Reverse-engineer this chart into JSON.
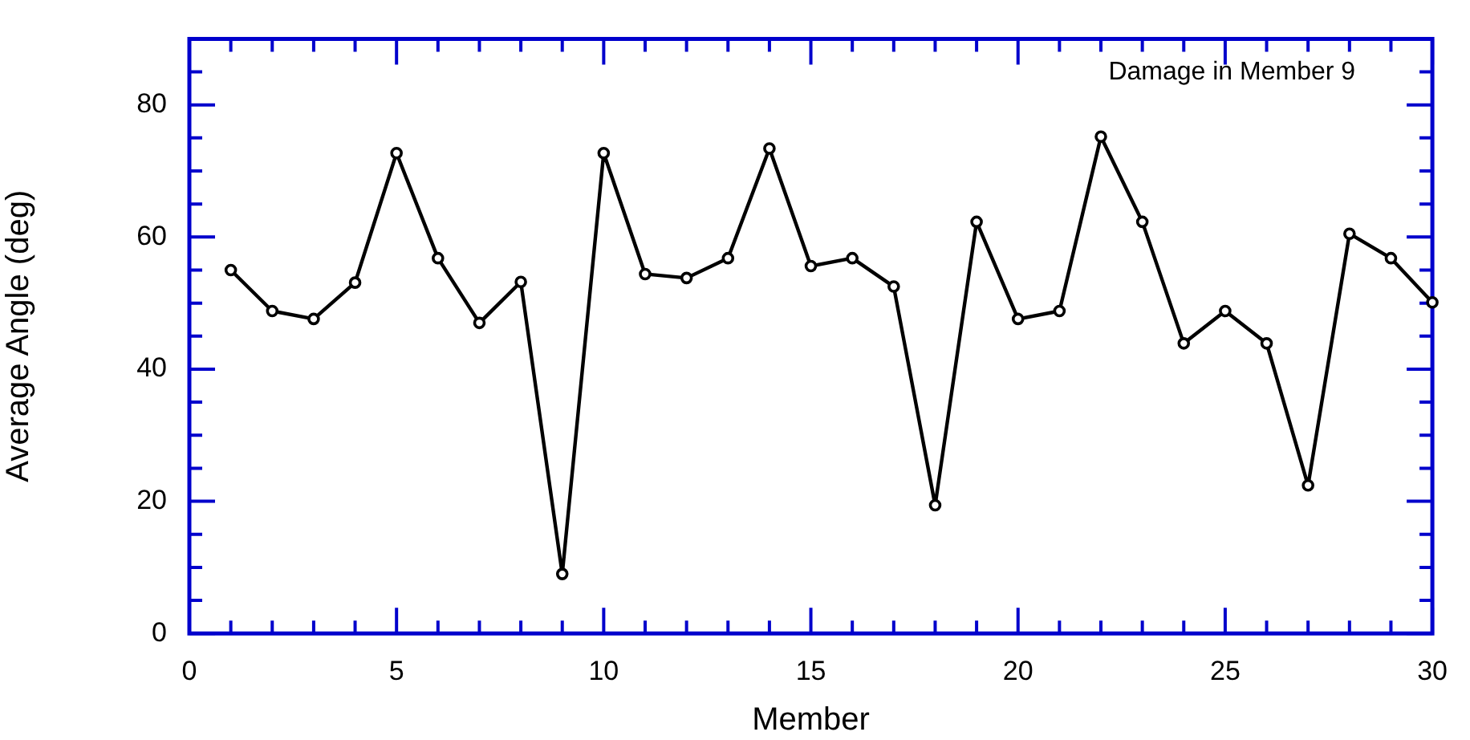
{
  "chart_data": {
    "type": "line",
    "xlabel": "Member",
    "ylabel": "Average Angle (deg)",
    "annotations": [
      "Damage in Member 9"
    ],
    "x": [
      1,
      2,
      3,
      4,
      5,
      6,
      7,
      8,
      9,
      10,
      11,
      12,
      13,
      14,
      15,
      16,
      17,
      18,
      19,
      20,
      21,
      22,
      23,
      24,
      25,
      26,
      27,
      28,
      29,
      30
    ],
    "series": [
      {
        "color": "#000000",
        "values": [
          55,
          48.8,
          47.6,
          53.1,
          72.7,
          56.8,
          47,
          53.2,
          9,
          72.7,
          54.4,
          53.8,
          56.8,
          73.4,
          55.6,
          56.8,
          52.5,
          19.4,
          62.3,
          47.6,
          48.8,
          75.2,
          62.3,
          43.9,
          48.8,
          43.9,
          22.4,
          60.5,
          56.8,
          50.1
        ]
      }
    ],
    "xlim": [
      0,
      30
    ],
    "ylim": [
      0,
      90
    ],
    "xticks": [
      0,
      {
        "value": 1,
        "label": null
      },
      {
        "value": 2,
        "label": null
      },
      {
        "value": 3,
        "label": null
      },
      {
        "value": 4,
        "label": null
      },
      5,
      {
        "value": 6,
        "label": null
      },
      {
        "value": 7,
        "label": null
      },
      {
        "value": 8,
        "label": null
      },
      {
        "value": 9,
        "label": null
      },
      10,
      {
        "value": 11,
        "label": null
      },
      {
        "value": 12,
        "label": null
      },
      {
        "value": 13,
        "label": null
      },
      {
        "value": 14,
        "label": null
      },
      15,
      {
        "value": 16,
        "label": null
      },
      {
        "value": 17,
        "label": null
      },
      {
        "value": 18,
        "label": null
      },
      {
        "value": 19,
        "label": null
      },
      20,
      {
        "value": 21,
        "label": null
      },
      {
        "value": 22,
        "label": null
      },
      {
        "value": 23,
        "label": null
      },
      {
        "value": 24,
        "label": null
      },
      25,
      {
        "value": 26,
        "label": null
      },
      {
        "value": 27,
        "label": null
      },
      {
        "value": 28,
        "label": null
      },
      {
        "value": 29,
        "label": null
      },
      30
    ],
    "yticks": [
      0,
      {
        "value": 5,
        "label": null
      },
      {
        "value": 10,
        "label": null
      },
      {
        "value": 15,
        "label": null
      },
      20,
      {
        "value": 25,
        "label": null
      },
      {
        "value": 30,
        "label": null
      },
      {
        "value": 35,
        "label": null
      },
      40,
      {
        "value": 45,
        "label": null
      },
      {
        "value": 50,
        "label": null
      },
      {
        "value": 55,
        "label": null
      },
      60,
      {
        "value": 65,
        "label": null
      },
      {
        "value": 70,
        "label": null
      },
      {
        "value": 75,
        "label": null
      },
      80,
      {
        "value": 85,
        "label": null
      }
    ],
    "grid": false,
    "legend": false,
    "marker": "circle",
    "line_style": "solid"
  }
}
